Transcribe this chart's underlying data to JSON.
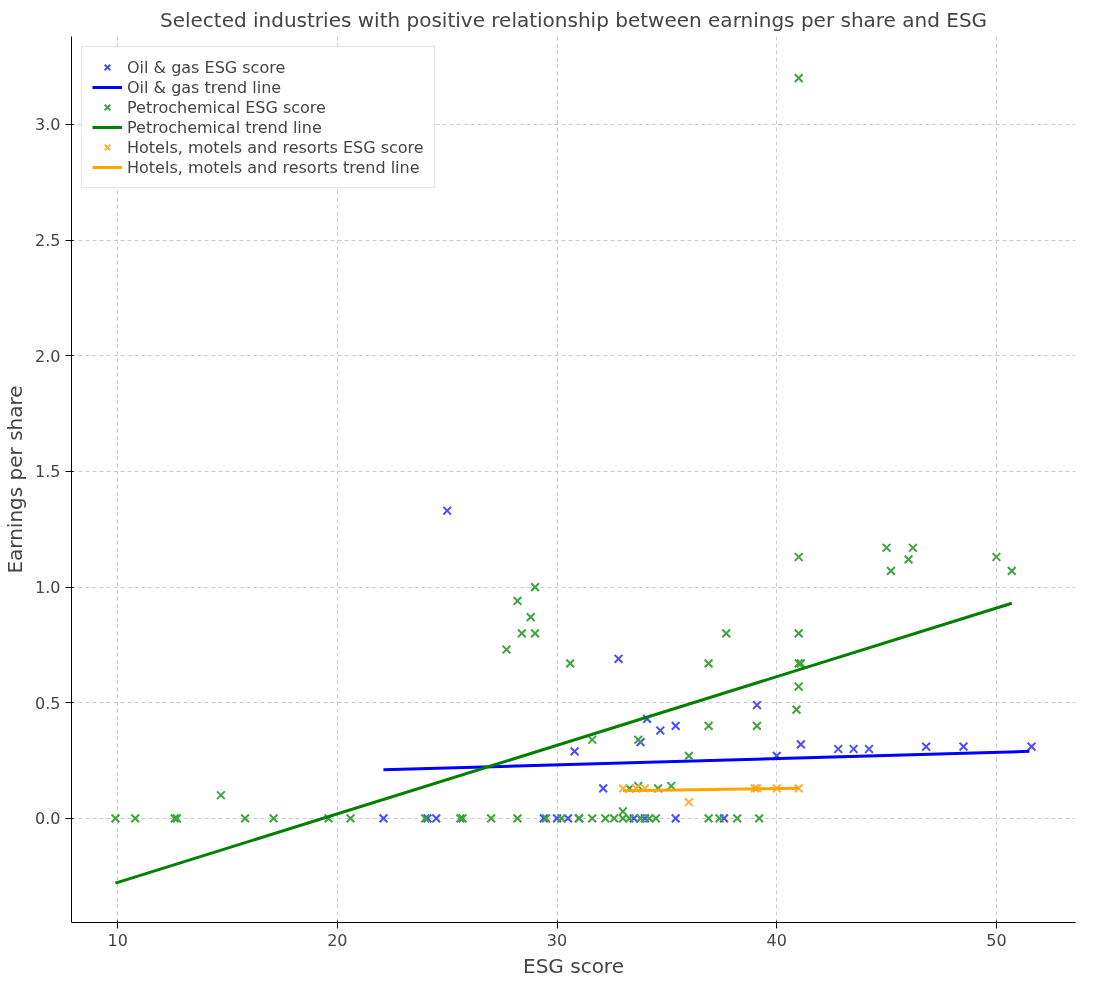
{
  "chart_data": {
    "type": "scatter",
    "title": "Selected industries with positive relationship between earnings per share and ESG",
    "xlabel": "ESG score",
    "ylabel": "Earnings per share",
    "xlim": [
      7.9,
      53.6
    ],
    "ylim": [
      -0.45,
      3.38
    ],
    "xticks": [
      10,
      20,
      30,
      40,
      50
    ],
    "yticks": [
      {
        "value": 0,
        "label": "0.0"
      },
      {
        "value": 0.5,
        "label": "0.5"
      },
      {
        "value": 1,
        "label": "1.0"
      },
      {
        "value": 1.5,
        "label": "1.5"
      },
      {
        "value": 2,
        "label": "2.0"
      },
      {
        "value": 2.5,
        "label": "2.5"
      },
      {
        "value": 3,
        "label": "3.0"
      }
    ],
    "grid": true,
    "legend": "top left",
    "series": [
      {
        "name": "Oil & gas ESG score",
        "marker": "cross",
        "color": "#4c4cff",
        "x": [
          25.0,
          32.8,
          22.1,
          24.1,
          24.5,
          29.4,
          30.0,
          30.5,
          31.0,
          33.5,
          33.8,
          34.0,
          35.4,
          37.6,
          30.8,
          32.1,
          33.8,
          34.1,
          34.7,
          35.4,
          39.1,
          40.0,
          41.1,
          42.8,
          43.5,
          44.2,
          46.8,
          48.5,
          51.6
        ],
        "values": [
          1.33,
          0.69,
          0,
          0,
          0,
          0,
          0,
          0,
          0,
          0,
          0,
          0,
          0,
          0,
          0.29,
          0.13,
          0.33,
          0.43,
          0.38,
          0.4,
          0.49,
          0.27,
          0.32,
          0.3,
          0.3,
          0.3,
          0.31,
          0.31,
          0.31
        ]
      },
      {
        "name": "Oil & gas trend line",
        "type": "line",
        "marker": "none",
        "color": "#0000ff",
        "x": [
          22.1,
          51.5
        ],
        "values": [
          0.21,
          0.29
        ]
      },
      {
        "name": "Petrochemical ESG score",
        "marker": "cross",
        "color": "#3fa33f",
        "x": [
          9.9,
          10.8,
          12.6,
          12.7,
          15.8,
          17.1,
          19.6,
          20.6,
          24.0,
          25.6,
          25.7,
          27.0,
          28.2,
          29.5,
          30.2,
          31.0,
          31.6,
          32.2,
          32.6,
          33.0,
          33.3,
          33.8,
          34.2,
          34.5,
          36.9,
          37.4,
          38.2,
          39.2,
          14.7,
          27.7,
          28.2,
          28.4,
          28.8,
          29.0,
          29.0,
          30.6,
          31.6,
          33.7,
          33.7,
          35.2,
          36.0,
          36.9,
          36.9,
          37.7,
          39.1,
          40.9,
          41.0,
          41.0,
          41.1,
          41.0,
          41.0,
          41.0,
          45.0,
          45.2,
          46.0,
          46.2,
          50.0,
          50.7,
          33.0,
          33.3,
          34.6
        ],
        "values": [
          0,
          0,
          0,
          0,
          0,
          0,
          0,
          0,
          0,
          0,
          0,
          0,
          0,
          0,
          0,
          0,
          0,
          0,
          0,
          0,
          0,
          0,
          0,
          0,
          0,
          0,
          0,
          0,
          0.1,
          0.73,
          0.94,
          0.8,
          0.87,
          0.8,
          1.0,
          0.67,
          0.34,
          0.34,
          0.14,
          0.14,
          0.27,
          0.4,
          0.67,
          0.8,
          0.4,
          0.47,
          0.57,
          0.67,
          0.67,
          0.8,
          1.13,
          3.2,
          1.17,
          1.07,
          1.12,
          1.17,
          1.13,
          1.07,
          0.03,
          0.13,
          0.13
        ]
      },
      {
        "name": "Petrochemical trend line",
        "type": "line",
        "marker": "none",
        "color": "#008000",
        "x": [
          9.9,
          50.7
        ],
        "values": [
          -0.28,
          0.93
        ]
      },
      {
        "name": "Hotels, motels and resorts ESG score",
        "marker": "cross",
        "color": "#ffb03f",
        "x": [
          33.0,
          33.6,
          34.0,
          36.0,
          39.0,
          39.1,
          40.0,
          41.0
        ],
        "values": [
          0.13,
          0.13,
          0.13,
          0.07,
          0.13,
          0.13,
          0.13,
          0.13
        ]
      },
      {
        "name": "Hotels, motels and resorts trend line",
        "type": "line",
        "marker": "none",
        "color": "#ffa500",
        "x": [
          33.0,
          41.0
        ],
        "values": [
          0.12,
          0.13
        ]
      }
    ]
  }
}
